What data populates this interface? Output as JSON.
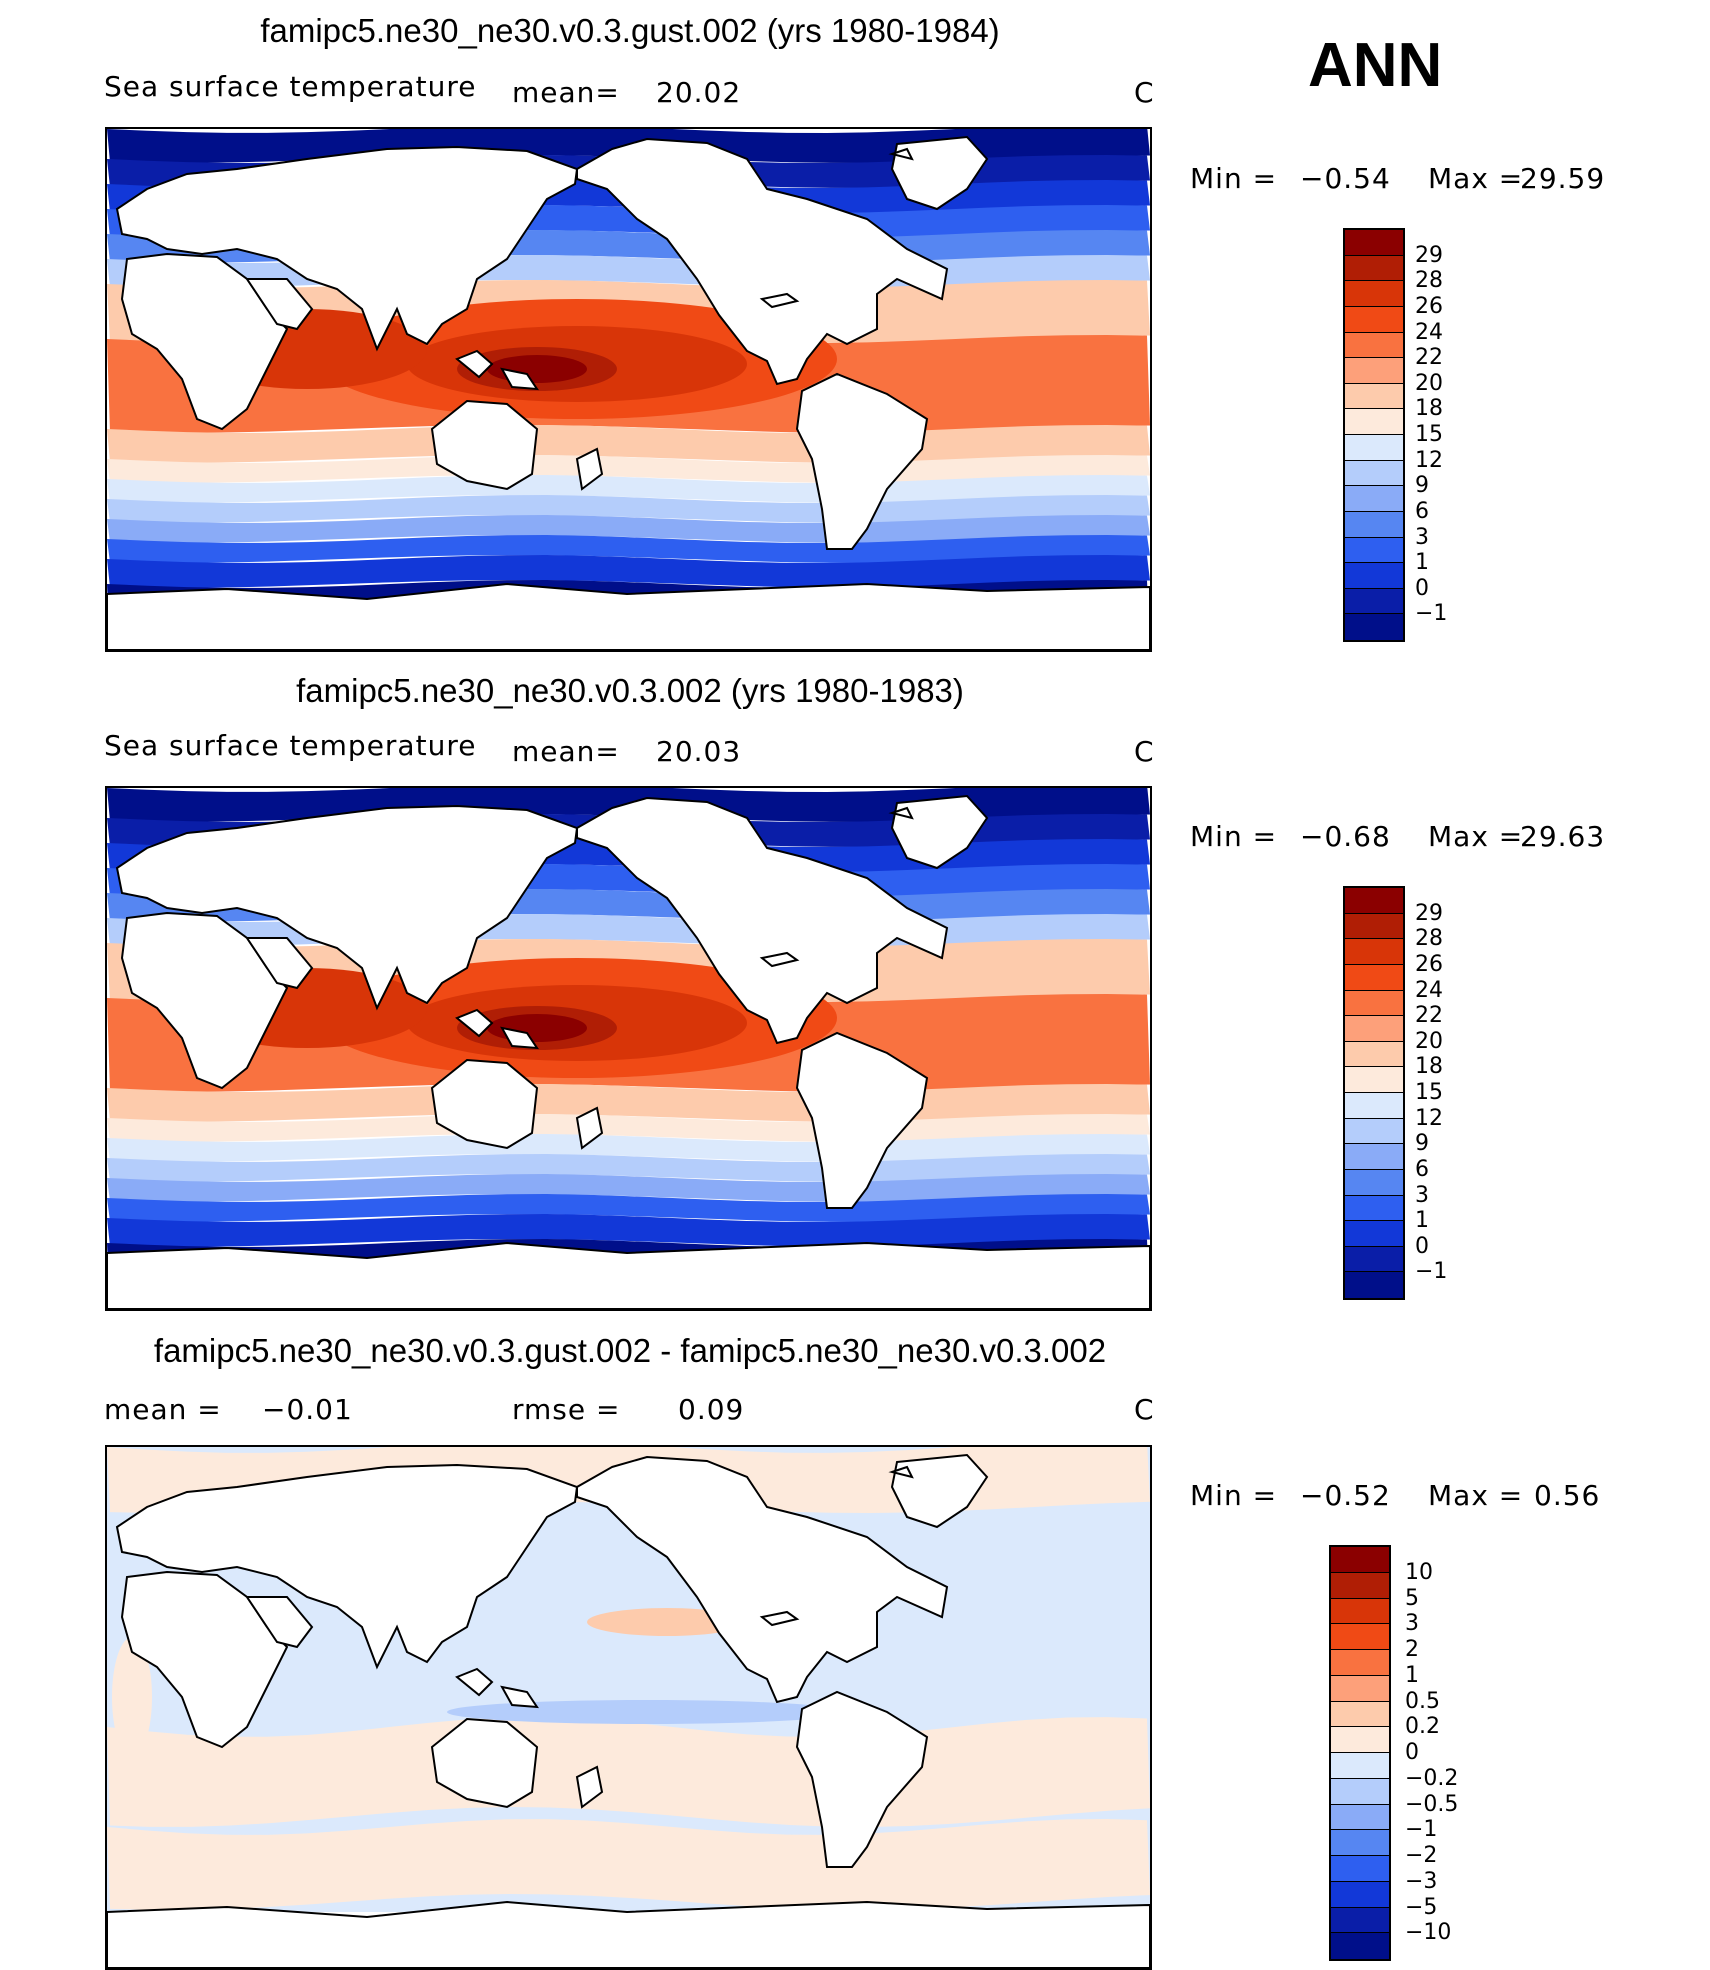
{
  "season": "ANN",
  "panels": [
    {
      "title": "famipc5.ne30_ne30.v0.3.gust.002 (yrs 1980-1984)",
      "variable": "Sea surface temperature",
      "mean_label": "mean=",
      "mean_value": "20.02",
      "units": "C",
      "min_label": "Min =",
      "min_value": "−0.54",
      "max_label": "Max =",
      "max_value": "29.59",
      "colorbar_labels": [
        "29",
        "28",
        "26",
        "24",
        "22",
        "20",
        "18",
        "15",
        "12",
        "9",
        "6",
        "3",
        "1",
        "0",
        "−1"
      ],
      "colorbar_colors": [
        "#8b0000",
        "#b01e05",
        "#d83508",
        "#f04a15",
        "#f97240",
        "#fda07a",
        "#fdcbac",
        "#fdeadc",
        "#dbe9fc",
        "#b4cdfb",
        "#8aabf7",
        "#5686f2",
        "#2e5ff0",
        "#1238d8",
        "#0a1ea8",
        "#000f8a"
      ]
    },
    {
      "title": "famipc5.ne30_ne30.v0.3.002 (yrs 1980-1983)",
      "variable": "Sea surface temperature",
      "mean_label": "mean=",
      "mean_value": "20.03",
      "units": "C",
      "min_label": "Min =",
      "min_value": "−0.68",
      "max_label": "Max =",
      "max_value": "29.63",
      "colorbar_labels": [
        "29",
        "28",
        "26",
        "24",
        "22",
        "20",
        "18",
        "15",
        "12",
        "9",
        "6",
        "3",
        "1",
        "0",
        "−1"
      ],
      "colorbar_colors": [
        "#8b0000",
        "#b01e05",
        "#d83508",
        "#f04a15",
        "#f97240",
        "#fda07a",
        "#fdcbac",
        "#fdeadc",
        "#dbe9fc",
        "#b4cdfb",
        "#8aabf7",
        "#5686f2",
        "#2e5ff0",
        "#1238d8",
        "#0a1ea8",
        "#000f8a"
      ]
    },
    {
      "title": "famipc5.ne30_ne30.v0.3.gust.002 - famipc5.ne30_ne30.v0.3.002",
      "mean_label": "mean =",
      "mean_value": "−0.01",
      "rmse_label": "rmse =",
      "rmse_value": "0.09",
      "units": "C",
      "min_label": "Min =",
      "min_value": "−0.52",
      "max_label": "Max =",
      "max_value": "0.56",
      "colorbar_labels": [
        "10",
        "5",
        "3",
        "2",
        "1",
        "0.5",
        "0.2",
        "0",
        "−0.2",
        "−0.5",
        "−1",
        "−2",
        "−3",
        "−5",
        "−10"
      ],
      "colorbar_colors": [
        "#8b0000",
        "#b01e05",
        "#d83508",
        "#f04a15",
        "#f97240",
        "#fda07a",
        "#fdcbac",
        "#fdeadc",
        "#dbe9fc",
        "#b4cdfb",
        "#8aabf7",
        "#5686f2",
        "#2e5ff0",
        "#1238d8",
        "#0a1ea8",
        "#000f8a"
      ]
    }
  ]
}
